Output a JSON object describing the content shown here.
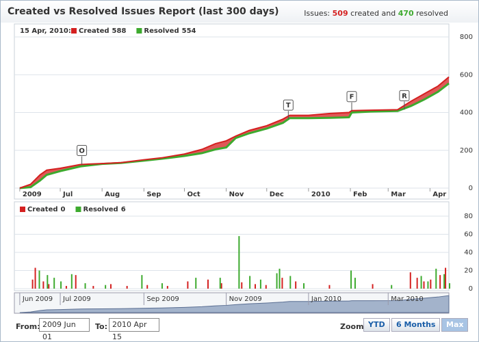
{
  "header": {
    "title": "Created vs Resolved Issues Report (last 300 days)",
    "summary": {
      "prefix": "Issues:",
      "created": "509",
      "created_text": "created and",
      "resolved": "470",
      "resolved_text": "resolved"
    }
  },
  "chart_data": [
    {
      "type": "line",
      "legend_date": "15 Apr, 2010:",
      "xlim": [
        -4,
        318
      ],
      "xticks": [
        {
          "value": 0,
          "label": "2009"
        },
        {
          "value": 30,
          "label": "Jul"
        },
        {
          "value": 61,
          "label": "Aug"
        },
        {
          "value": 92,
          "label": "Sep"
        },
        {
          "value": 122,
          "label": "Oct"
        },
        {
          "value": 153,
          "label": "Nov"
        },
        {
          "value": 183,
          "label": "Dec"
        },
        {
          "value": 214,
          "label": "2010"
        },
        {
          "value": 245,
          "label": "Feb"
        },
        {
          "value": 273,
          "label": "Mar"
        },
        {
          "value": 304,
          "label": "Apr"
        }
      ],
      "ylim": [
        0,
        800
      ],
      "yticks": [
        0,
        200,
        400,
        600,
        800
      ],
      "grid": true,
      "x": [
        0,
        8,
        15,
        20,
        30,
        45,
        61,
        75,
        92,
        105,
        122,
        135,
        145,
        153,
        160,
        170,
        183,
        195,
        200,
        214,
        230,
        244,
        246,
        260,
        280,
        290,
        300,
        310,
        318
      ],
      "series": [
        {
          "name": "Created",
          "color": "#d42020",
          "legend_value": 588,
          "values": [
            0,
            20,
            70,
            95,
            105,
            125,
            130,
            135,
            150,
            160,
            180,
            205,
            235,
            250,
            275,
            305,
            330,
            365,
            385,
            385,
            395,
            400,
            410,
            412,
            415,
            460,
            500,
            540,
            588
          ]
        },
        {
          "name": "Resolved",
          "color": "#3daa2e",
          "legend_value": 554,
          "values": [
            0,
            5,
            40,
            70,
            90,
            115,
            128,
            133,
            145,
            155,
            170,
            185,
            205,
            215,
            265,
            290,
            315,
            345,
            370,
            370,
            372,
            375,
            400,
            405,
            408,
            435,
            470,
            510,
            554
          ]
        }
      ],
      "flags": [
        {
          "label": "O",
          "x": 46
        },
        {
          "label": "T",
          "x": 199
        },
        {
          "label": "F",
          "x": 246
        },
        {
          "label": "R",
          "x": 285
        }
      ]
    },
    {
      "type": "bar",
      "xlim": [
        -4,
        318
      ],
      "ylim": [
        0,
        80
      ],
      "yticks": [
        0,
        20,
        40,
        60,
        80
      ],
      "grid": true,
      "series": [
        {
          "name": "Created",
          "color": "#d42020",
          "legend_value": 0,
          "x": [
            10,
            12,
            18,
            22,
            35,
            42,
            55,
            68,
            80,
            95,
            110,
            125,
            140,
            150,
            165,
            175,
            183,
            195,
            205,
            230,
            262,
            290,
            295,
            300,
            305,
            312,
            316
          ],
          "values": [
            10,
            23,
            8,
            5,
            3,
            15,
            3,
            5,
            3,
            4,
            3,
            8,
            10,
            6,
            7,
            5,
            4,
            12,
            8,
            4,
            5,
            18,
            12,
            8,
            10,
            15,
            23
          ]
        },
        {
          "name": "Resolved",
          "color": "#3daa2e",
          "legend_value": 6,
          "x": [
            14,
            20,
            25,
            30,
            38,
            48,
            63,
            90,
            105,
            130,
            148,
            162,
            170,
            178,
            190,
            192,
            200,
            210,
            245,
            248,
            275,
            297,
            302,
            308,
            314,
            318
          ],
          "values": [
            20,
            15,
            12,
            8,
            16,
            6,
            4,
            15,
            6,
            12,
            12,
            58,
            14,
            10,
            17,
            22,
            14,
            6,
            20,
            12,
            4,
            14,
            8,
            22,
            16,
            6
          ]
        }
      ]
    }
  ],
  "navigator": {
    "xticks": [
      {
        "value": 0,
        "label": "Jun 2009"
      },
      {
        "value": 30,
        "label": "Jul 2009"
      },
      {
        "value": 92,
        "label": "Sep 2009"
      },
      {
        "value": 153,
        "label": "Nov 2009"
      },
      {
        "value": 214,
        "label": "Jan 2010"
      },
      {
        "value": 273,
        "label": "Mar 2010"
      }
    ]
  },
  "range": {
    "from_label": "From:",
    "from": "2009 Jun 01",
    "to_label": "To:",
    "to": "2010 Apr 15"
  },
  "zoom": {
    "label": "Zoom:",
    "buttons": [
      "YTD",
      "6 Months",
      "Max"
    ],
    "selected": 2
  }
}
